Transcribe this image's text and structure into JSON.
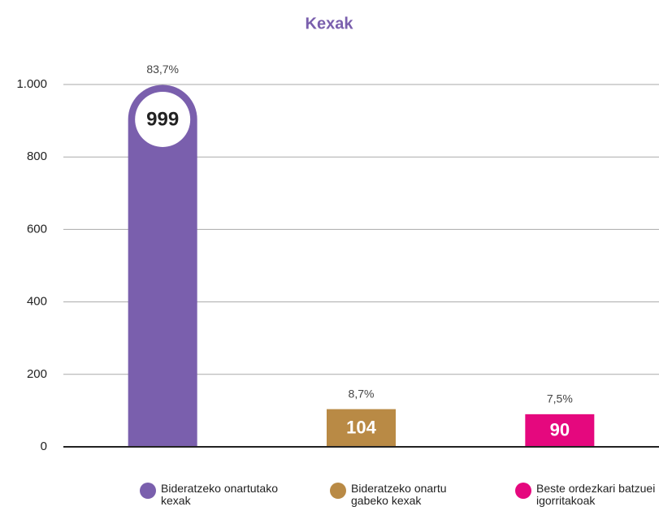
{
  "chart_data": {
    "type": "bar",
    "title": "Kexak",
    "categories": [
      "Bideratzeko onartutako kexak",
      "Bideratzeko onartu gabeko kexak",
      "Beste ordezkari batzuei igorritakoak"
    ],
    "values": [
      999,
      104,
      90
    ],
    "percent_labels": [
      "83,7%",
      "8,7%",
      "7,5%"
    ],
    "colors": [
      "#7a5fad",
      "#b98a45",
      "#e5087e"
    ],
    "ylim": [
      0,
      1000
    ],
    "yticks": [
      0,
      200,
      400,
      600,
      800,
      {
        "value": 1000,
        "label": "1.000"
      }
    ],
    "grid": true
  }
}
